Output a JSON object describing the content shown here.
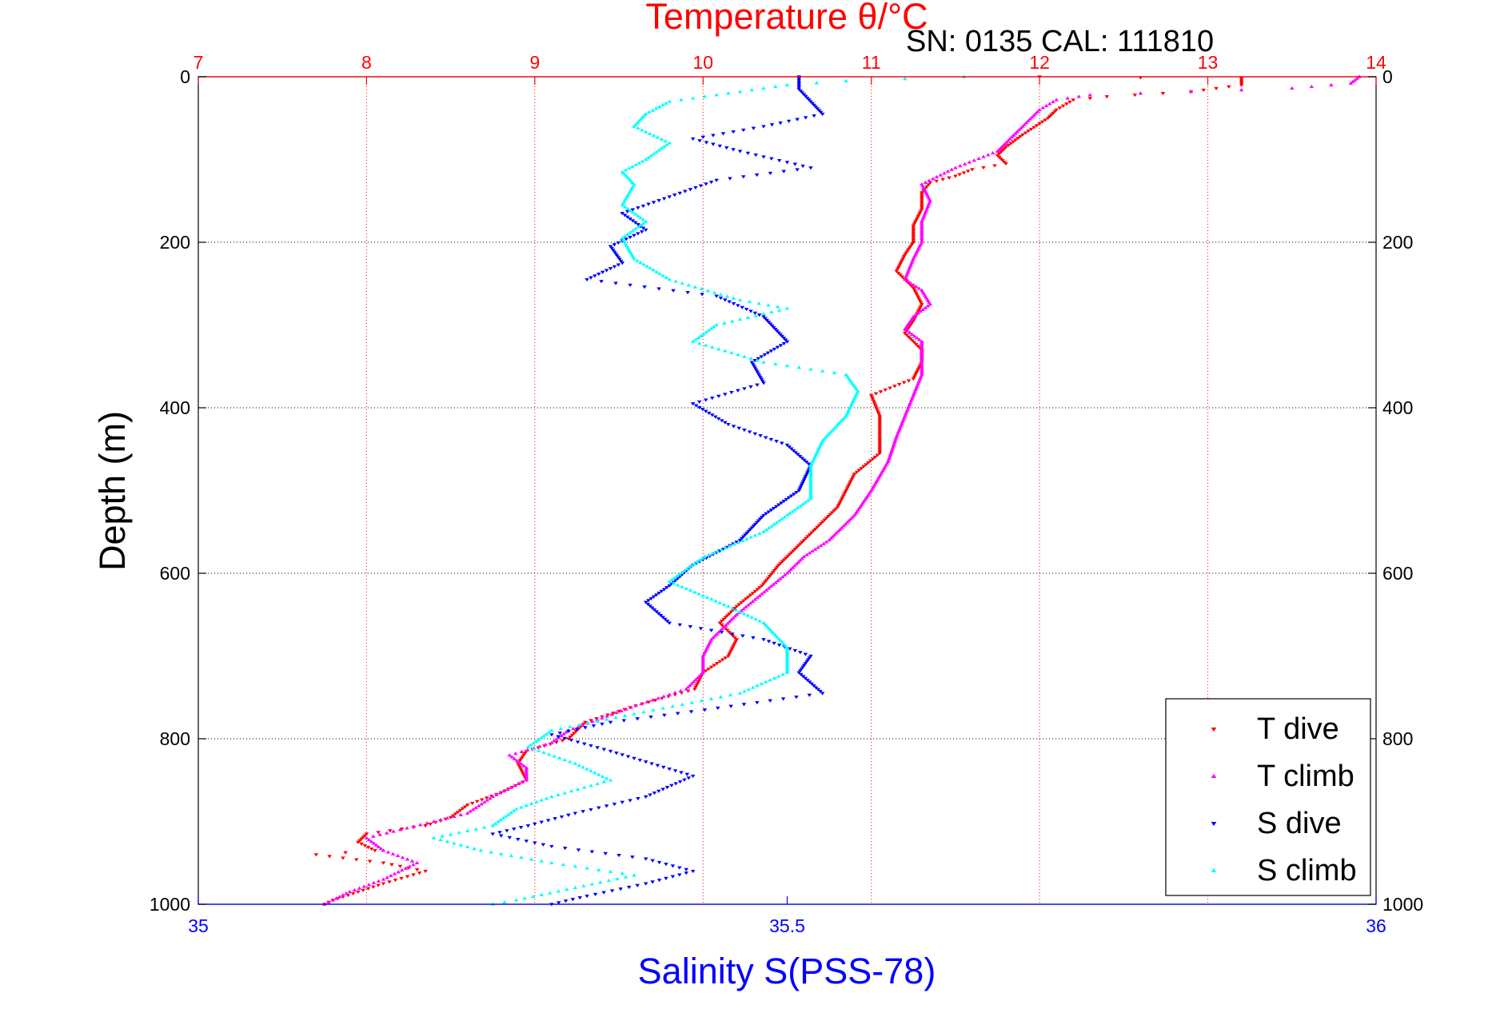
{
  "chart_data": {
    "type": "scatter",
    "title": "Temperature θ/°C",
    "subtitle": "SN: 0135  CAL: 111810",
    "xlabel": "Salinity S(PSS-78)",
    "ylabel": "Depth (m)",
    "x_top": {
      "label": "Temperature θ/°C",
      "range": [
        7,
        14
      ],
      "ticks": [
        "7",
        "8",
        "9",
        "10",
        "11",
        "12",
        "13",
        "14"
      ],
      "color": "#ff0000"
    },
    "x_bottom": {
      "label": "Salinity S(PSS-78)",
      "range": [
        35,
        36
      ],
      "ticks": [
        "35",
        "35.5",
        "36"
      ],
      "color": "#0000ff"
    },
    "y": {
      "range": [
        0,
        1000
      ],
      "reversed": true,
      "ticks": [
        "0",
        "200",
        "400",
        "600",
        "800",
        "1000"
      ]
    },
    "grid": true,
    "legend_position": "bottom-right",
    "series": [
      {
        "name": "T dive",
        "axis": "temperature",
        "color": "#ff0000",
        "marker": "triangle-down",
        "points": [
          [
            12.0,
            0
          ],
          [
            13.2,
            2
          ],
          [
            13.2,
            10
          ],
          [
            12.9,
            18
          ],
          [
            12.4,
            24
          ],
          [
            12.2,
            28
          ],
          [
            12.1,
            40
          ],
          [
            12.05,
            50
          ],
          [
            11.9,
            70
          ],
          [
            11.8,
            85
          ],
          [
            11.75,
            95
          ],
          [
            11.8,
            105
          ],
          [
            11.6,
            112
          ],
          [
            11.5,
            120
          ],
          [
            11.35,
            128
          ],
          [
            11.3,
            140
          ],
          [
            11.3,
            160
          ],
          [
            11.25,
            180
          ],
          [
            11.25,
            200
          ],
          [
            11.2,
            215
          ],
          [
            11.15,
            235
          ],
          [
            11.25,
            255
          ],
          [
            11.3,
            275
          ],
          [
            11.25,
            295
          ],
          [
            11.2,
            310
          ],
          [
            11.3,
            330
          ],
          [
            11.3,
            345
          ],
          [
            11.25,
            365
          ],
          [
            11.0,
            385
          ],
          [
            11.05,
            410
          ],
          [
            11.05,
            435
          ],
          [
            11.05,
            455
          ],
          [
            10.9,
            480
          ],
          [
            10.85,
            500
          ],
          [
            10.8,
            520
          ],
          [
            10.7,
            540
          ],
          [
            10.6,
            560
          ],
          [
            10.45,
            590
          ],
          [
            10.35,
            615
          ],
          [
            10.2,
            640
          ],
          [
            10.1,
            660
          ],
          [
            10.2,
            680
          ],
          [
            10.15,
            700
          ],
          [
            10.0,
            720
          ],
          [
            9.95,
            740
          ],
          [
            9.6,
            760
          ],
          [
            9.3,
            780
          ],
          [
            9.2,
            800
          ],
          [
            8.95,
            815
          ],
          [
            8.9,
            830
          ],
          [
            8.95,
            850
          ],
          [
            8.8,
            865
          ],
          [
            8.6,
            880
          ],
          [
            8.5,
            895
          ],
          [
            8.35,
            905
          ],
          [
            8.0,
            915
          ],
          [
            7.95,
            925
          ],
          [
            8.05,
            935
          ],
          [
            7.7,
            940
          ],
          [
            8.1,
            950
          ],
          [
            8.35,
            960
          ],
          [
            8.1,
            975
          ],
          [
            7.95,
            985
          ],
          [
            7.8,
            995
          ],
          [
            7.75,
            1000
          ]
        ]
      },
      {
        "name": "T climb",
        "axis": "temperature",
        "color": "#ff00ff",
        "marker": "triangle-up",
        "points": [
          [
            13.9,
            0
          ],
          [
            13.85,
            8
          ],
          [
            13.5,
            14
          ],
          [
            12.9,
            18
          ],
          [
            12.3,
            22
          ],
          [
            12.1,
            28
          ],
          [
            12.0,
            40
          ],
          [
            11.9,
            60
          ],
          [
            11.75,
            90
          ],
          [
            11.5,
            110
          ],
          [
            11.3,
            130
          ],
          [
            11.35,
            150
          ],
          [
            11.3,
            175
          ],
          [
            11.3,
            200
          ],
          [
            11.25,
            220
          ],
          [
            11.2,
            245
          ],
          [
            11.3,
            258
          ],
          [
            11.35,
            275
          ],
          [
            11.25,
            290
          ],
          [
            11.2,
            305
          ],
          [
            11.3,
            320
          ],
          [
            11.3,
            340
          ],
          [
            11.3,
            360
          ],
          [
            11.25,
            385
          ],
          [
            11.2,
            410
          ],
          [
            11.15,
            435
          ],
          [
            11.1,
            465
          ],
          [
            11.0,
            500
          ],
          [
            10.9,
            530
          ],
          [
            10.75,
            560
          ],
          [
            10.6,
            580
          ],
          [
            10.5,
            600
          ],
          [
            10.35,
            625
          ],
          [
            10.2,
            650
          ],
          [
            10.05,
            680
          ],
          [
            10.0,
            700
          ],
          [
            10.0,
            720
          ],
          [
            9.9,
            740
          ],
          [
            9.6,
            760
          ],
          [
            9.4,
            775
          ],
          [
            9.2,
            790
          ],
          [
            9.1,
            805
          ],
          [
            8.85,
            820
          ],
          [
            8.95,
            835
          ],
          [
            8.95,
            850
          ],
          [
            8.75,
            870
          ],
          [
            8.6,
            890
          ],
          [
            8.4,
            900
          ],
          [
            8.2,
            910
          ],
          [
            8.0,
            920
          ],
          [
            8.1,
            935
          ],
          [
            8.3,
            950
          ],
          [
            8.1,
            970
          ],
          [
            7.9,
            985
          ],
          [
            7.8,
            995
          ],
          [
            7.75,
            1000
          ]
        ]
      },
      {
        "name": "S dive",
        "axis": "salinity",
        "color": "#0000ff",
        "marker": "triangle-down",
        "points": [
          [
            35.51,
            0
          ],
          [
            35.51,
            15
          ],
          [
            35.52,
            30
          ],
          [
            35.53,
            45
          ],
          [
            35.48,
            60
          ],
          [
            35.42,
            75
          ],
          [
            35.46,
            90
          ],
          [
            35.52,
            110
          ],
          [
            35.44,
            125
          ],
          [
            35.4,
            145
          ],
          [
            35.36,
            165
          ],
          [
            35.38,
            185
          ],
          [
            35.35,
            205
          ],
          [
            35.36,
            225
          ],
          [
            35.33,
            245
          ],
          [
            35.44,
            265
          ],
          [
            35.48,
            290
          ],
          [
            35.5,
            320
          ],
          [
            35.47,
            345
          ],
          [
            35.48,
            370
          ],
          [
            35.42,
            395
          ],
          [
            35.45,
            420
          ],
          [
            35.5,
            445
          ],
          [
            35.52,
            470
          ],
          [
            35.51,
            500
          ],
          [
            35.48,
            530
          ],
          [
            35.46,
            560
          ],
          [
            35.42,
            590
          ],
          [
            35.4,
            615
          ],
          [
            35.38,
            635
          ],
          [
            35.4,
            660
          ],
          [
            35.48,
            680
          ],
          [
            35.52,
            700
          ],
          [
            35.51,
            720
          ],
          [
            35.53,
            745
          ],
          [
            35.43,
            765
          ],
          [
            35.35,
            780
          ],
          [
            35.3,
            795
          ],
          [
            35.35,
            815
          ],
          [
            35.42,
            845
          ],
          [
            35.38,
            870
          ],
          [
            35.32,
            890
          ],
          [
            35.28,
            905
          ],
          [
            35.25,
            915
          ],
          [
            35.3,
            930
          ],
          [
            35.38,
            945
          ],
          [
            35.42,
            960
          ],
          [
            35.38,
            975
          ],
          [
            35.33,
            990
          ],
          [
            35.3,
            1000
          ]
        ]
      },
      {
        "name": "S climb",
        "axis": "salinity",
        "color": "#00ffff",
        "marker": "triangle-up",
        "points": [
          [
            35.65,
            0
          ],
          [
            35.55,
            5
          ],
          [
            35.5,
            10
          ],
          [
            35.45,
            20
          ],
          [
            35.4,
            30
          ],
          [
            35.38,
            45
          ],
          [
            35.37,
            60
          ],
          [
            35.4,
            80
          ],
          [
            35.38,
            100
          ],
          [
            35.36,
            115
          ],
          [
            35.37,
            130
          ],
          [
            35.36,
            155
          ],
          [
            35.38,
            175
          ],
          [
            35.36,
            195
          ],
          [
            35.37,
            220
          ],
          [
            35.4,
            245
          ],
          [
            35.46,
            270
          ],
          [
            35.5,
            280
          ],
          [
            35.44,
            300
          ],
          [
            35.42,
            320
          ],
          [
            35.48,
            345
          ],
          [
            35.55,
            360
          ],
          [
            35.56,
            380
          ],
          [
            35.55,
            410
          ],
          [
            35.53,
            440
          ],
          [
            35.52,
            470
          ],
          [
            35.52,
            510
          ],
          [
            35.48,
            550
          ],
          [
            35.43,
            580
          ],
          [
            35.4,
            610
          ],
          [
            35.45,
            640
          ],
          [
            35.48,
            660
          ],
          [
            35.5,
            690
          ],
          [
            35.5,
            720
          ],
          [
            35.46,
            745
          ],
          [
            35.37,
            770
          ],
          [
            35.3,
            790
          ],
          [
            35.28,
            810
          ],
          [
            35.32,
            830
          ],
          [
            35.35,
            850
          ],
          [
            35.3,
            870
          ],
          [
            35.27,
            885
          ],
          [
            35.25,
            905
          ],
          [
            35.2,
            920
          ],
          [
            35.24,
            935
          ],
          [
            35.3,
            950
          ],
          [
            35.37,
            965
          ],
          [
            35.32,
            980
          ],
          [
            35.27,
            995
          ],
          [
            35.25,
            1000
          ]
        ]
      }
    ]
  }
}
